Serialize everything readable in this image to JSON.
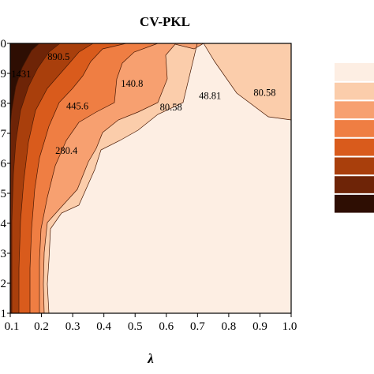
{
  "chart_data": {
    "type": "contour",
    "title": "CV-PKL",
    "xlabel": "λ",
    "ylabel": "",
    "x_ticks": [
      "0.1",
      "0.2",
      "0.3",
      "0.4",
      "0.5",
      "0.6",
      "0.7",
      "0.8",
      "0.9",
      "1.0"
    ],
    "y_ticks": [
      ".1",
      ".2",
      ".3",
      ".4",
      ".5",
      ".6",
      ".7",
      ".8",
      ".9",
      ".0"
    ],
    "xlim": [
      0.1,
      1.0
    ],
    "ylim": [
      0.1,
      1.0
    ],
    "contour_levels": [
      48.81,
      80.58,
      140.8,
      280.4,
      445.6,
      890.5,
      1431
    ],
    "level_labels": [
      {
        "text": "1431",
        "x": 0.135,
        "y": 0.897
      },
      {
        "text": "890.5",
        "x": 0.255,
        "y": 0.955
      },
      {
        "text": "140.8",
        "x": 0.49,
        "y": 0.866
      },
      {
        "text": "445.6",
        "x": 0.315,
        "y": 0.791
      },
      {
        "text": "80.58",
        "x": 0.615,
        "y": 0.787
      },
      {
        "text": "48.81",
        "x": 0.74,
        "y": 0.825
      },
      {
        "text": "80.58",
        "x": 0.915,
        "y": 0.836
      },
      {
        "text": "280.4",
        "x": 0.28,
        "y": 0.642
      }
    ],
    "fill_colors": [
      "#fdeee3",
      "#fbcdab",
      "#f7a070",
      "#ef7e43",
      "#d95b1c",
      "#a93f0c",
      "#6e2407",
      "#2e0e03"
    ],
    "grid": false
  }
}
